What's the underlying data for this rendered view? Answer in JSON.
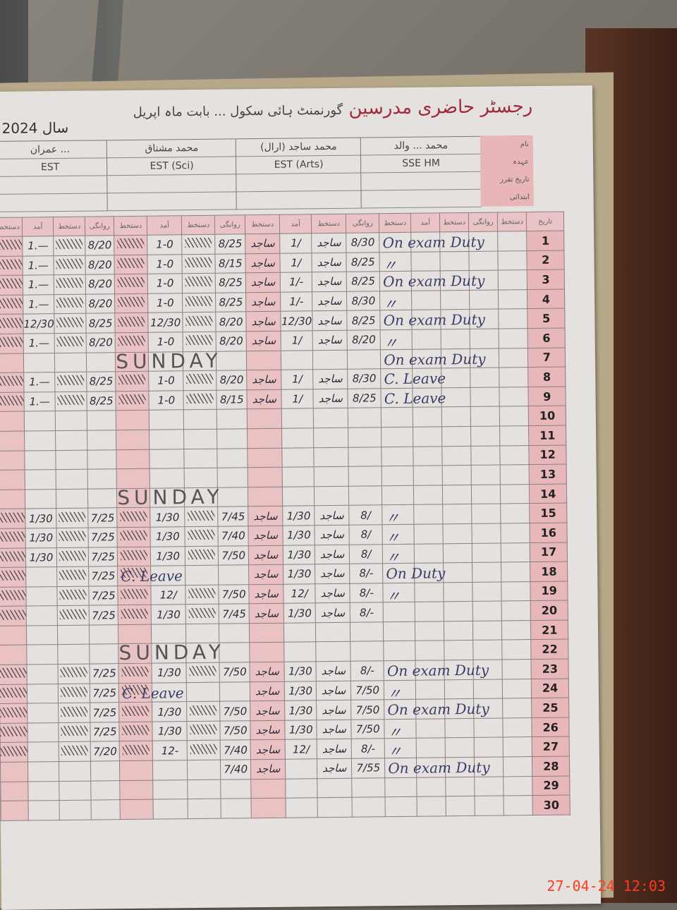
{
  "register": {
    "title": "رجسٹر حاضری مدرسین",
    "title_handwritten": "گورنمنٹ ہائی سکول ... بابت ماہ اپریل",
    "month_label": "بابت ماہ",
    "year_label": "سال 2024",
    "row_labels": [
      "نام",
      "عہدہ",
      "تاریخ تقرر",
      "ابتدائی"
    ],
    "column_headers": [
      "آمد",
      "دستخط",
      "روانگی",
      "دستخط"
    ],
    "serial_header": "تاریخ"
  },
  "teachers": [
    {
      "name": "عمران ... ",
      "designation": "EST"
    },
    {
      "name": "محمد مشتاق",
      "designation": "EST (Sci)"
    },
    {
      "name": "محمد ساجد (ارال)",
      "designation": "EST (Arts)"
    },
    {
      "name": "محمد ... والد",
      "designation": "SSE HM"
    }
  ],
  "rows": [
    {
      "n": "1",
      "t4d": "1.—",
      "t4a": "8/20",
      "t3d": "1-0",
      "t3a": "8/25",
      "t2s": "ساجد",
      "t2d": "1/",
      "t2a": "8/30",
      "hm": "On exam Duty"
    },
    {
      "n": "2",
      "t4d": "1.—",
      "t4a": "8/20",
      "t3d": "1-0",
      "t3a": "8/15",
      "t2s": "ساجد",
      "t2d": "1/",
      "t2a": "8/25",
      "hm": "〃"
    },
    {
      "n": "3",
      "t4d": "1.—",
      "t4a": "8/20",
      "t3d": "1-0",
      "t3a": "8/25",
      "t2s": "ساجد",
      "t2d": "1/-",
      "t2a": "8/25",
      "hm": "On exam Duty"
    },
    {
      "n": "4",
      "t4d": "1.—",
      "t4a": "8/20",
      "t3d": "1-0",
      "t3a": "8/25",
      "t2s": "ساجد",
      "t2d": "1/-",
      "t2a": "8/30",
      "hm": "〃"
    },
    {
      "n": "5",
      "t4d": "12/30",
      "t4a": "8/25",
      "t3d": "12/30",
      "t3a": "8/20",
      "t2s": "ساجد",
      "t2d": "12/30",
      "t2a": "8/25",
      "hm": "On exam Duty"
    },
    {
      "n": "6",
      "t4d": "1.—",
      "t4a": "8/20",
      "t3d": "1-0",
      "t3a": "8/20",
      "t2s": "ساجد",
      "t2d": "1/",
      "t2a": "8/20",
      "hm": "〃"
    },
    {
      "n": "7",
      "sunday": "SUNDAY",
      "hm": "On exam Duty"
    },
    {
      "n": "8",
      "t4d": "1.—",
      "t4a": "8/25",
      "t3d": "1-0",
      "t3a": "8/20",
      "t2s": "ساجد",
      "t2d": "1/",
      "t2a": "8/30",
      "hm": "C. Leave"
    },
    {
      "n": "9",
      "t4d": "1.—",
      "t4a": "8/25",
      "t3d": "1-0",
      "t3a": "8/15",
      "t2s": "ساجد",
      "t2d": "1/",
      "t2a": "8/25",
      "hm": "C. Leave"
    },
    {
      "n": "10"
    },
    {
      "n": "11"
    },
    {
      "n": "12"
    },
    {
      "n": "13"
    },
    {
      "n": "14",
      "sunday": "SUNDAY"
    },
    {
      "n": "15",
      "t4d": "1/30",
      "t4a": "7/25",
      "t3d": "1/30",
      "t3a": "7/45",
      "t2s": "ساجد",
      "t2d": "1/30",
      "t2a": "8/",
      "hm": "〃"
    },
    {
      "n": "16",
      "t4d": "1/30",
      "t4a": "7/25",
      "t3d": "1/30",
      "t3a": "7/40",
      "t2s": "ساجد",
      "t2d": "1/30",
      "t2a": "8/",
      "hm": "〃"
    },
    {
      "n": "17",
      "t4d": "1/30",
      "t4a": "7/25",
      "t3d": "1/30",
      "t3a": "7/50",
      "t2s": "ساجد",
      "t2d": "1/30",
      "t2a": "8/",
      "hm": "〃"
    },
    {
      "n": "18",
      "t4a": "7/25",
      "t3note": "C. Leave",
      "t2s": "ساجد",
      "t2d": "1/30",
      "t2a": "8/-",
      "hm": "On Duty"
    },
    {
      "n": "19",
      "t4a": "7/25",
      "t3d": "12/",
      "t3a": "7/50",
      "t2s": "ساجد",
      "t2d": "12/",
      "t2a": "8/-",
      "hm": "〃"
    },
    {
      "n": "20",
      "t4a": "7/25",
      "t3d": "1/30",
      "t3a": "7/45",
      "t2s": "ساجد",
      "t2d": "1/30",
      "t2a": "8/-"
    },
    {
      "n": "21"
    },
    {
      "n": "22",
      "sunday": "SUNDAY"
    },
    {
      "n": "23",
      "t4a": "7/25",
      "t3d": "1/30",
      "t3a": "7/50",
      "t2s": "ساجد",
      "t2d": "1/30",
      "t2a": "8/-",
      "hm": "On exam Duty"
    },
    {
      "n": "24",
      "t4a": "7/25",
      "t3note": "C. Leave",
      "t2s": "ساجد",
      "t2d": "1/30",
      "t2a": "7/50",
      "hm": "〃"
    },
    {
      "n": "25",
      "t4a": "7/25",
      "t3d": "1/30",
      "t3a": "7/50",
      "t2s": "ساجد",
      "t2d": "1/30",
      "t2a": "7/50",
      "hm": "On exam Duty"
    },
    {
      "n": "26",
      "t4a": "7/25",
      "t3d": "1/30",
      "t3a": "7/50",
      "t2s": "ساجد",
      "t2d": "1/30",
      "t2a": "7/50",
      "hm": "〃"
    },
    {
      "n": "27",
      "t4a": "7/20",
      "t3d": "12-",
      "t3a": "7/40",
      "t2s": "ساجد",
      "t2d": "12/",
      "t2a": "8/-",
      "hm": "〃"
    },
    {
      "n": "28",
      "t3a": "7/40",
      "t2s": "ساجد",
      "t2a": "7/55",
      "hm": "On exam Duty"
    },
    {
      "n": "29"
    },
    {
      "n": "30"
    }
  ],
  "camera_timestamp": "27-04-24  12:03",
  "colors": {
    "ruling_pink": "#eac2c4",
    "title_red": "#a02a3a",
    "timestamp": "#ff3a1e"
  }
}
